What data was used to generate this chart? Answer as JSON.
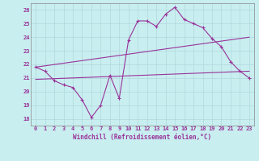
{
  "xlabel": "Windchill (Refroidissement éolien,°C)",
  "background_color": "#c8eef0",
  "grid_color": "#b0d8dc",
  "line_color": "#993399",
  "spine_color": "#888888",
  "xlim": [
    -0.5,
    23.5
  ],
  "ylim": [
    17.5,
    26.5
  ],
  "xticks": [
    0,
    1,
    2,
    3,
    4,
    5,
    6,
    7,
    8,
    9,
    10,
    11,
    12,
    13,
    14,
    15,
    16,
    17,
    18,
    19,
    20,
    21,
    22,
    23
  ],
  "yticks": [
    18,
    19,
    20,
    21,
    22,
    23,
    24,
    25,
    26
  ],
  "line1_x": [
    0,
    1,
    2,
    3,
    4,
    5,
    6,
    7,
    8,
    9,
    10,
    11,
    12,
    13,
    14,
    15,
    16,
    17,
    18,
    19,
    20,
    21,
    22,
    23
  ],
  "line1_y": [
    21.8,
    21.5,
    20.8,
    20.5,
    20.3,
    19.4,
    18.1,
    19.0,
    21.2,
    19.5,
    23.8,
    25.2,
    25.2,
    24.8,
    25.7,
    26.2,
    25.3,
    25.0,
    24.7,
    23.9,
    23.3,
    22.2,
    21.5,
    21.0
  ],
  "line2_x": [
    0,
    23
  ],
  "line2_y": [
    21.8,
    24.0
  ],
  "line3_x": [
    0,
    23
  ],
  "line3_y": [
    20.9,
    21.5
  ],
  "figsize": [
    3.2,
    2.0
  ],
  "dpi": 100,
  "label_fontsize": 5.5,
  "tick_fontsize": 5.0
}
